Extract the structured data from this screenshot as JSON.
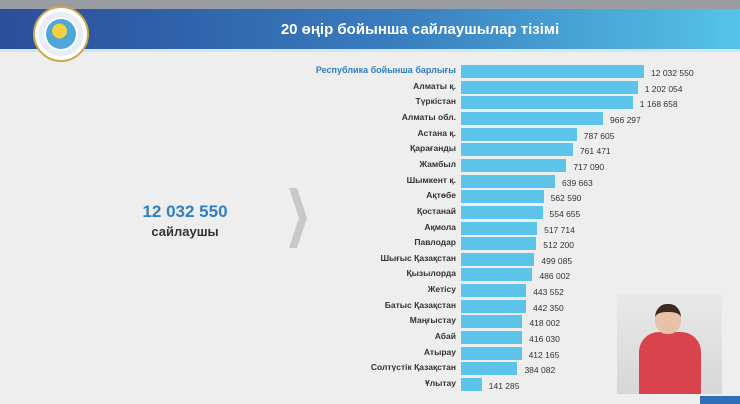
{
  "header": {
    "title": "20 өңір бойынша сайлаушылар тізімі"
  },
  "summary": {
    "total": "12 032 550",
    "label": "сайлаушы"
  },
  "colors": {
    "bar": "#5bc4e8",
    "accent": "#2f7fc1",
    "header_start": "#2d4f9a",
    "header_end": "#55c4e8"
  },
  "chart_data": {
    "type": "bar",
    "orientation": "horizontal",
    "categories": [
      "Республика бойынша барлығы",
      "Алматы қ.",
      "Түркістан",
      "Алматы обл.",
      "Астана қ.",
      "Қарағанды",
      "Жамбыл",
      "Шымкент қ.",
      "Ақтөбе",
      "Қостанай",
      "Ақмола",
      "Павлодар",
      "Шығыс Қазақстан",
      "Қызылорда",
      "Жетісу",
      "Батыс Қазақстан",
      "Маңғыстау",
      "Абай",
      "Атырау",
      "Солтүстік Қазақстан",
      "Ұлытау"
    ],
    "values": [
      12032550,
      1202054,
      1168658,
      966297,
      787605,
      761471,
      717090,
      639663,
      562590,
      554655,
      517714,
      512200,
      499085,
      486002,
      443552,
      442350,
      418002,
      416030,
      412165,
      384082,
      141285
    ],
    "value_labels": [
      "12 032 550",
      "1 202 054",
      "1 168 658",
      "966 297",
      "787 605",
      "761 471",
      "717 090",
      "639 663",
      "562 590",
      "554 655",
      "517 714",
      "512 200",
      "499 085",
      "486 002",
      "443 552",
      "442 350",
      "418 002",
      "416 030",
      "412 165",
      "384 082",
      "141 285"
    ]
  }
}
